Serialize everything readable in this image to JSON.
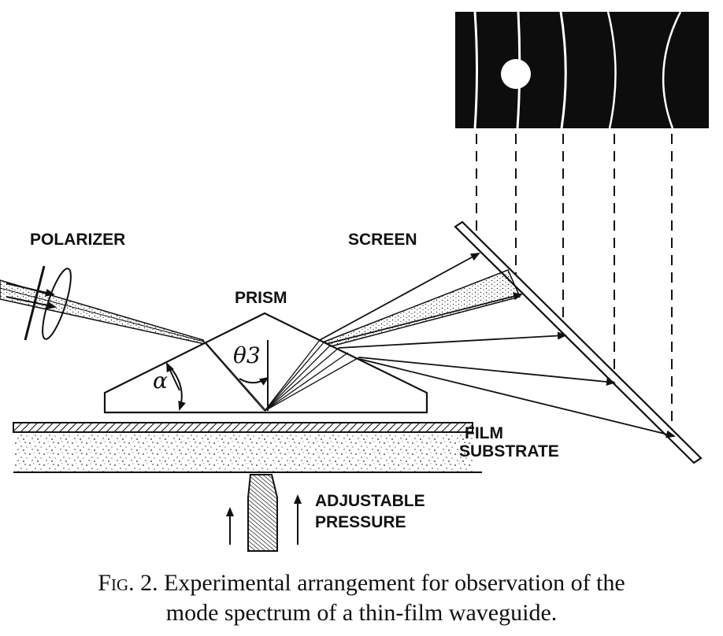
{
  "figure": {
    "labels": {
      "polarizer": "POLARIZER",
      "prism": "PRISM",
      "screen": "SCREEN",
      "theta": "θ3",
      "alpha": "α",
      "film": "FILM",
      "substrate": "SUBSTRATE",
      "adjustable": "ADJUSTABLE",
      "pressure": "PRESSURE"
    }
  },
  "caption": {
    "fig_label": "Fig. 2.",
    "line1": "Experimental arrangement for observation of the",
    "line2": "mode spectrum of a thin-film waveguide."
  },
  "colors": {
    "ink": "#111111",
    "background": "#ffffff",
    "photo_background": "#0d0d0d",
    "mode_line": "#ffffff"
  }
}
